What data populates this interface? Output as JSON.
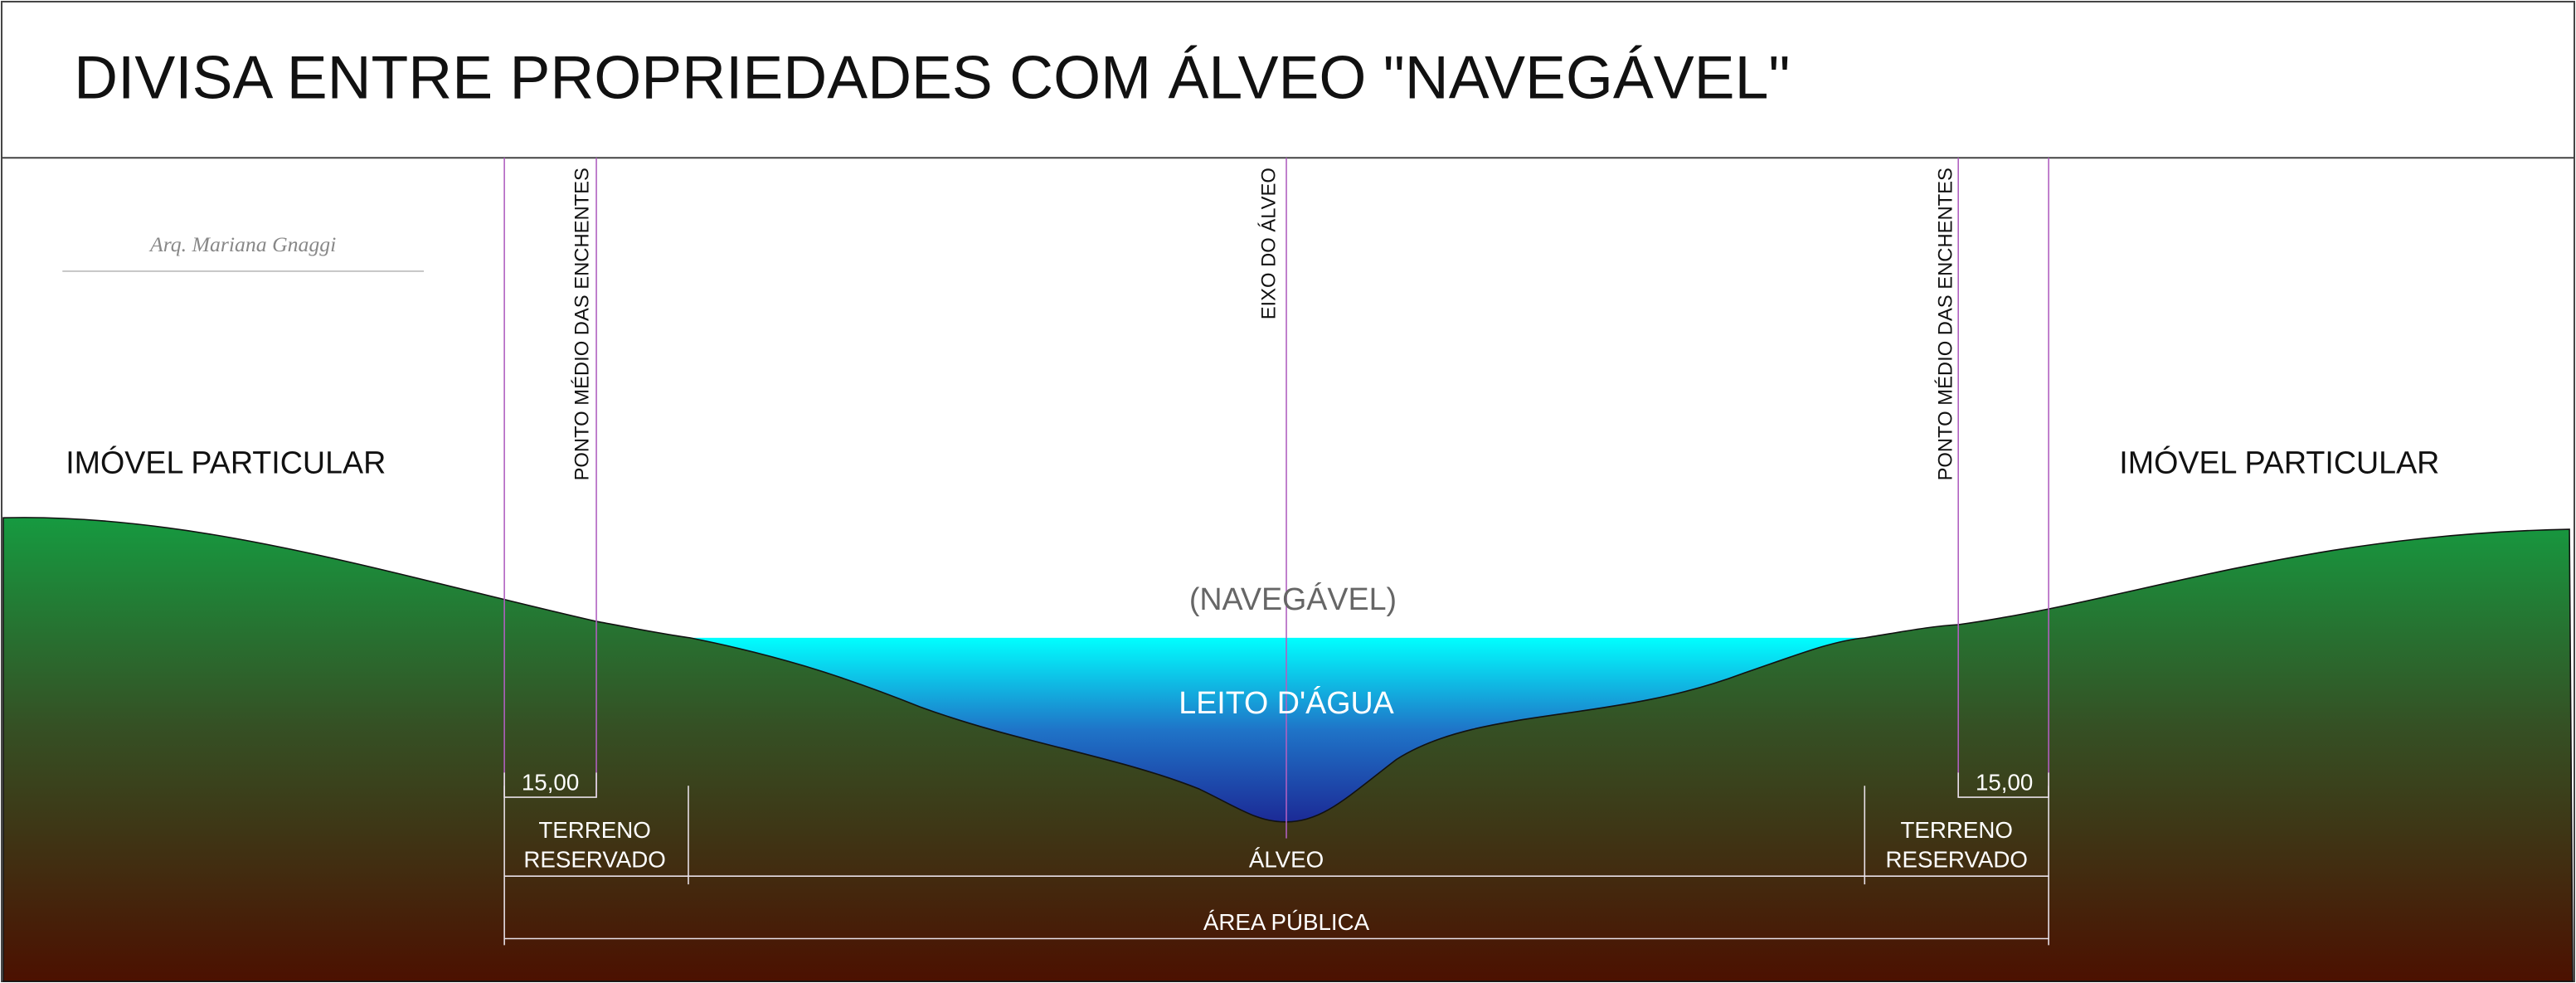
{
  "title": "DIVISA ENTRE PROPRIEDADES COM ÁLVEO \"NAVEGÁVEL\"",
  "logo": {
    "signature": "Arq. Mariana Gnaggi"
  },
  "left_property": "IMÓVEL PARTICULAR",
  "right_property": "IMÓVEL PARTICULAR",
  "axis_labels": {
    "left_flood": "PONTO MÉDIO DAS ENCHENTES",
    "center": "EIXO DO ÁLVEO",
    "right_flood": "PONTO MÉDIO DAS ENCHENTES"
  },
  "water": {
    "navigable": "(NAVEGÁVEL)",
    "bed": "LEITO D'ÁGUA"
  },
  "dimensions": {
    "left_width": "15,00",
    "right_width": "15,00",
    "left_reserved": [
      "TERRENO",
      "RESERVADO"
    ],
    "right_reserved": [
      "TERRENO",
      "RESERVADO"
    ],
    "channel": "ÁLVEO",
    "public_area": "ÁREA PÚBLICA"
  }
}
